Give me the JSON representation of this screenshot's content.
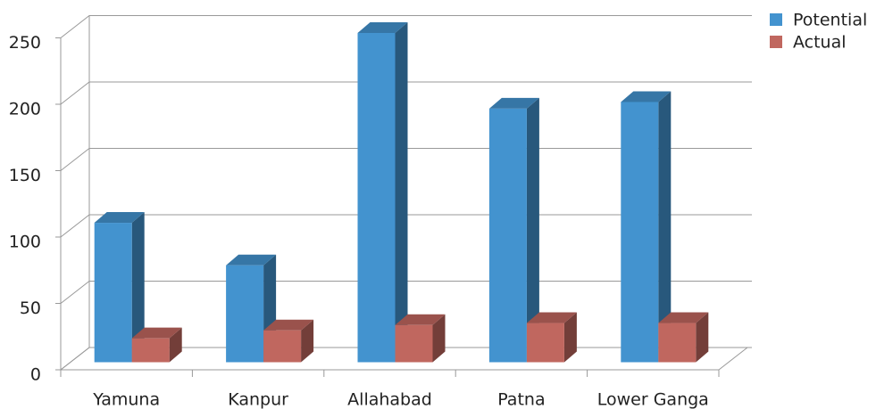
{
  "chart_data": {
    "type": "bar3d",
    "categories": [
      "Yamuna",
      "Kanpur",
      "Allahabad",
      "Patna",
      "Lower Ganga"
    ],
    "series": [
      {
        "name": "Potential",
        "color": "#4393cf",
        "values": [
          105,
          73,
          248,
          191,
          196
        ]
      },
      {
        "name": "Actual",
        "color": "#c0675f",
        "values": [
          18,
          24,
          28,
          29.5,
          29.5
        ]
      }
    ],
    "ylim": [
      0,
      250
    ],
    "yticks": [
      0,
      50,
      100,
      150,
      200,
      250
    ],
    "grid": true,
    "legend": "top-right"
  }
}
